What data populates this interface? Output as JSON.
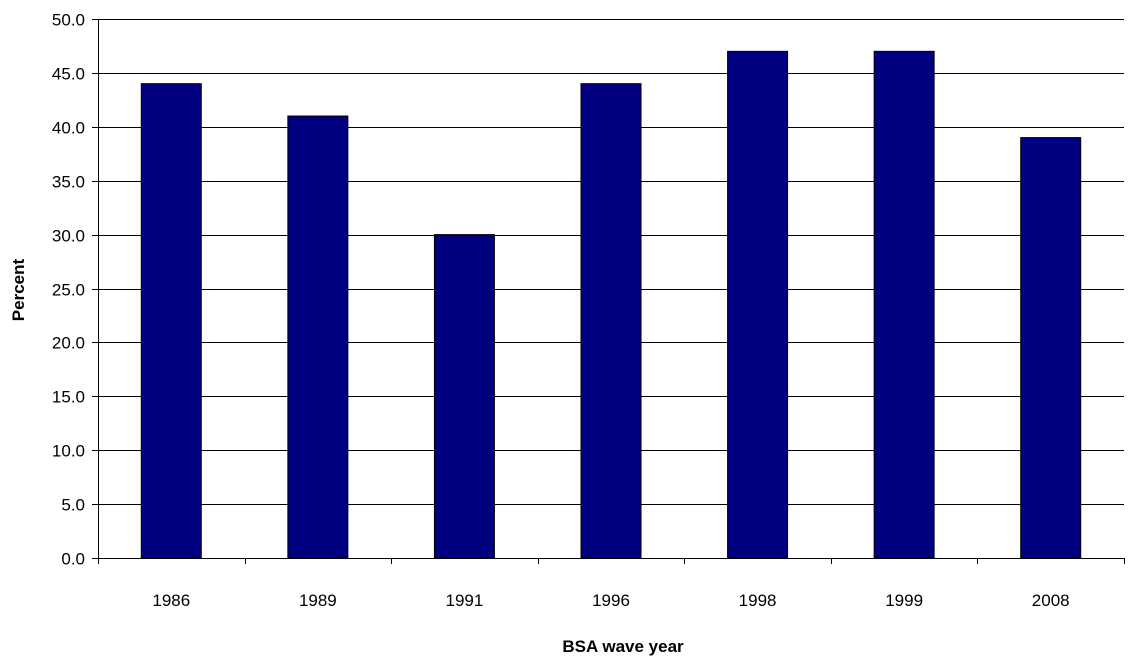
{
  "colors": {
    "bar_fill": "#000080",
    "bar_stroke": "#000000",
    "gridline": "#000000",
    "axis": "#000000",
    "background": "#ffffff"
  },
  "chart_data": {
    "type": "bar",
    "title": "",
    "xlabel": "BSA wave year",
    "ylabel": "Percent",
    "categories": [
      "1986",
      "1989",
      "1991",
      "1996",
      "1998",
      "1999",
      "2008"
    ],
    "values": [
      44,
      41,
      30,
      44,
      47,
      47,
      39
    ],
    "ylim": [
      0,
      50
    ],
    "yticks": [
      "0.0",
      "5.0",
      "10.0",
      "15.0",
      "20.0",
      "25.0",
      "30.0",
      "35.0",
      "40.0",
      "45.0",
      "50.0"
    ],
    "grid": true,
    "legend": "none"
  }
}
